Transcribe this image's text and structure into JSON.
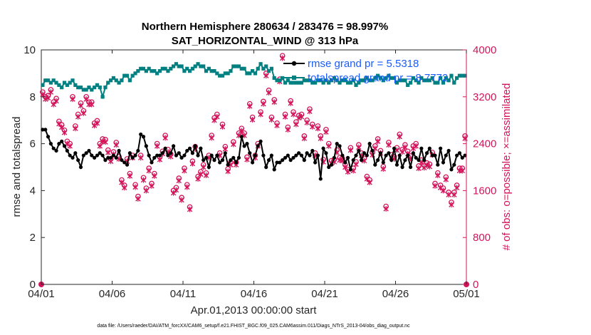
{
  "chart_data": {
    "type": "line",
    "title": "Northern Hemisphere 280634 / 283476 = 98.997%",
    "subtitle": "SAT_HORIZONTAL_WIND @ 313 hPa",
    "xlabel": "Apr.01,2013 00:00:00 start",
    "ylabel": "rmse and totalspread",
    "ylabel_right": "# of obs: o=possible; ×=assimilated",
    "footnote": "data file: /Users/raeder/DAI/ATM_forcXX/CAM6_setup/f.e21.FHIST_BGC.f09_025.CAM6assim.011/Diags_NTrS_2013-04/obs_diag_output.nc",
    "x_ticks": [
      "04/01",
      "04/06",
      "04/11",
      "04/16",
      "04/21",
      "04/26",
      "05/01"
    ],
    "x_tick_days": [
      0,
      5,
      10,
      15,
      20,
      25,
      30
    ],
    "xlim": [
      0,
      30
    ],
    "ylim_left": [
      0,
      10
    ],
    "y_ticks_left": [
      0,
      2,
      4,
      6,
      8,
      10
    ],
    "ylim_right": [
      0,
      4000
    ],
    "y_ticks_right": [
      0,
      800,
      1600,
      2400,
      3200,
      4000
    ],
    "legend": [
      {
        "name": "rmse grand pr = 5.5318",
        "color": "#000000"
      },
      {
        "name": "totalspread grand pr = 8.7772",
        "color": "#008080"
      }
    ],
    "colors": {
      "rmse": "#000000",
      "spread": "#008080",
      "obs": "#d4145a",
      "legend_text": "#1a5cff"
    },
    "rmse": [
      6.6,
      6.6,
      6.3,
      6.0,
      5.8,
      5.7,
      6.0,
      6.1,
      5.9,
      5.7,
      5.5,
      5.4,
      5.6,
      5.3,
      5.0,
      5.5,
      5.6,
      5.7,
      5.5,
      5.4,
      5.5,
      5.6,
      5.5,
      5.3,
      5.4,
      5.4,
      5.5,
      5.4,
      5.7,
      5.3,
      5.2,
      5.1,
      5.6,
      5.4,
      5.5,
      5.7,
      6.4,
      6.3,
      5.9,
      5.5,
      5.2,
      5.4,
      5.5,
      5.5,
      5.6,
      5.8,
      5.5,
      5.6,
      5.9,
      5.5,
      5.6,
      5.4,
      5.5,
      5.7,
      5.8,
      5.6,
      5.9,
      5.5,
      5.8,
      5.3,
      5.4,
      5.0,
      5.5,
      5.3,
      5.5,
      5.2,
      5.3,
      5.6,
      5.1,
      5.3,
      5.4,
      5.2,
      5.4,
      6.3,
      5.9,
      6.0,
      5.6,
      5.2,
      5.5,
      5.9,
      6.1,
      5.5,
      5.0,
      5.3,
      5.5,
      4.9,
      5.2,
      5.2,
      5.3,
      5.4,
      5.5,
      5.3,
      5.4,
      5.5,
      5.6,
      5.5,
      5.3,
      5.6,
      5.5,
      5.7,
      5.2,
      5.5,
      4.5,
      5.8,
      5.6,
      5.0,
      5.1,
      5.4,
      6.0,
      5.9,
      5.5,
      5.2,
      5.4,
      4.9,
      5.3,
      5.5,
      5.7,
      5.3,
      5.6,
      5.5,
      6.0,
      5.7,
      5.1,
      5.3,
      5.6,
      5.2,
      5.5,
      5.6,
      5.3,
      5.8,
      5.1,
      5.5,
      5.0,
      5.3,
      5.5,
      5.0,
      5.6,
      5.4,
      5.3,
      5.8,
      5.3,
      5.6,
      5.8,
      5.5,
      5.5,
      5.1,
      5.8,
      5.2,
      5.5,
      5.7,
      4.9,
      5.1,
      5.5,
      5.6,
      5.4,
      5.5
    ],
    "totalspread": [
      8.5,
      8.7,
      8.7,
      8.6,
      8.7,
      8.6,
      8.5,
      8.4,
      8.6,
      8.5,
      8.6,
      8.7,
      8.5,
      8.4,
      8.4,
      8.3,
      8.3,
      8.4,
      8.3,
      8.4,
      8.5,
      8.4,
      8.0,
      8.4,
      8.6,
      8.7,
      8.8,
      8.7,
      8.6,
      8.7,
      8.9,
      8.9,
      8.7,
      8.9,
      9.0,
      9.1,
      9.2,
      9.2,
      9.1,
      9.2,
      9.1,
      9.1,
      9.0,
      9.1,
      9.2,
      9.2,
      9.1,
      9.2,
      9.3,
      9.4,
      9.3,
      9.3,
      9.1,
      9.2,
      9.1,
      9.2,
      9.3,
      9.4,
      9.3,
      9.3,
      9.1,
      9.2,
      9.1,
      9.1,
      9.0,
      8.9,
      8.9,
      9.0,
      9.0,
      9.1,
      9.3,
      9.3,
      9.3,
      9.2,
      9.2,
      9.0,
      9.0,
      9.1,
      9.0,
      9.2,
      9.4,
      9.2,
      9.3,
      9.1,
      9.2,
      8.8,
      8.7,
      8.7,
      8.8,
      8.6,
      8.7,
      8.6,
      8.6,
      8.6,
      8.6,
      8.6,
      8.7,
      8.7,
      8.7,
      8.6,
      8.6,
      8.7,
      8.7,
      8.6,
      8.7,
      8.6,
      8.7,
      8.8,
      8.7,
      8.6,
      8.7,
      8.7,
      8.6,
      8.6,
      8.7,
      8.5,
      8.6,
      8.7,
      8.7,
      8.8,
      8.7,
      8.7,
      8.8,
      8.9,
      8.8,
      8.7,
      8.8,
      8.9,
      8.8,
      8.8,
      8.6,
      8.7,
      8.7,
      8.7,
      8.5,
      8.6,
      8.8,
      8.7,
      8.6,
      8.8,
      8.7,
      8.7,
      8.7,
      8.8,
      8.6,
      8.6,
      8.8,
      8.6,
      8.8,
      8.7,
      8.9,
      8.6,
      8.8,
      8.9,
      8.9,
      8.9
    ],
    "obs_possible": [
      3280,
      3200,
      3220,
      3320,
      3110,
      3170,
      2780,
      2720,
      2630,
      2440,
      2400,
      3200,
      2700,
      2900,
      3090,
      2960,
      3200,
      3110,
      3110,
      2750,
      2790,
      2400,
      2480,
      2470,
      2290,
      2140,
      2260,
      2420,
      2180,
      1780,
      1690,
      2140,
      1890,
      2200,
      1700,
      1500,
      2200,
      1820,
      1640,
      1980,
      1720,
      1890,
      2400,
      2170,
      2270,
      2540,
      2300,
      2220,
      1600,
      1650,
      1810,
      1480,
      1980,
      1700,
      1320,
      2100,
      2350,
      1840,
      1920,
      2040,
      1900,
      2200,
      2540,
      2840,
      2900,
      2240,
      2730,
      2350,
      1970,
      2080,
      2430,
      2080,
      2580,
      2660,
      2580,
      2170,
      3080,
      2850,
      2200,
      2400,
      2940,
      3120,
      3600,
      3310,
      2850,
      3150,
      2750,
      3500,
      3900,
      2900,
      2680,
      3130,
      2940,
      2770,
      2880,
      2900,
      2530,
      2800,
      2990,
      2730,
      2240,
      2700,
      2530,
      2130,
      2640,
      2400,
      2110,
      2130,
      2290,
      2160,
      2150,
      2040,
      1960,
      2330,
      1980,
      2090,
      2380,
      2240,
      2150,
      1840,
      1780,
      2250,
      2360,
      2480,
      2280,
      2010,
      1330,
      2420,
      2210,
      2180,
      2330,
      2560,
      2300,
      2380,
      2270,
      2190,
      2360,
      2400,
      2020,
      2120,
      2030,
      2070,
      2050,
      2250,
      1720,
      1900,
      1690,
      1640,
      1830,
      1570,
      1400,
      1570,
      1690,
      1980,
      1980,
      2530
    ],
    "obs_assimilated": [
      3240,
      3160,
      3180,
      3280,
      3070,
      3130,
      2740,
      2680,
      2590,
      2400,
      2360,
      3160,
      2660,
      2860,
      3050,
      2920,
      3160,
      3070,
      3070,
      2710,
      2750,
      2360,
      2440,
      2430,
      2250,
      2100,
      2220,
      2380,
      2140,
      1740,
      1650,
      2100,
      1850,
      2160,
      1660,
      1460,
      2160,
      1780,
      1600,
      1940,
      1680,
      1850,
      2360,
      2130,
      2230,
      2500,
      2260,
      2180,
      1560,
      1610,
      1770,
      1440,
      1940,
      1660,
      1280,
      2060,
      2310,
      1800,
      1880,
      2000,
      1860,
      2160,
      2500,
      2800,
      2860,
      2200,
      2690,
      2310,
      1930,
      2040,
      2390,
      2040,
      2540,
      2620,
      2540,
      2130,
      3040,
      2810,
      2160,
      2360,
      2900,
      3080,
      3560,
      3270,
      2810,
      3110,
      2710,
      3460,
      3860,
      2860,
      2640,
      3090,
      2900,
      2730,
      2840,
      2860,
      2490,
      2760,
      2950,
      2690,
      2200,
      2660,
      2490,
      2090,
      2600,
      2360,
      2070,
      2090,
      2250,
      2120,
      2110,
      2000,
      1920,
      2290,
      1940,
      2050,
      2340,
      2200,
      2110,
      1800,
      1740,
      2210,
      2320,
      2440,
      2240,
      1970,
      1290,
      2380,
      2170,
      2140,
      2290,
      2520,
      2260,
      2340,
      2230,
      2150,
      2320,
      2360,
      1980,
      2080,
      1990,
      2030,
      2010,
      2210,
      1680,
      1860,
      1650,
      1600,
      1790,
      1530,
      1360,
      1530,
      1650,
      1940,
      1940,
      2490
    ]
  }
}
